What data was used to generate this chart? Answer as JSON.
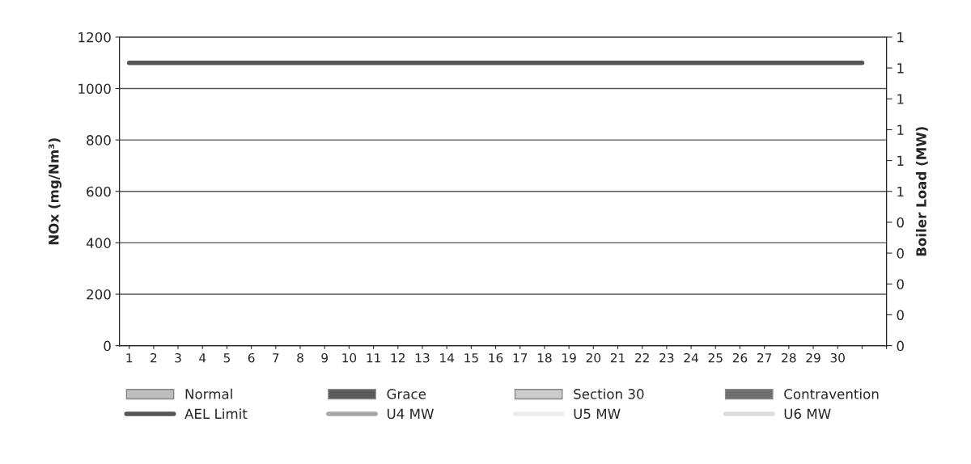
{
  "chart_data": {
    "type": "line",
    "ylabel": "NOx (mg/Nm³)",
    "y2label": "Boiler Load (MW)",
    "categories": [
      "1",
      "2",
      "3",
      "4",
      "5",
      "6",
      "7",
      "8",
      "9",
      "10",
      "11",
      "12",
      "13",
      "14",
      "15",
      "16",
      "17",
      "18",
      "19",
      "20",
      "21",
      "22",
      "23",
      "24",
      "25",
      "26",
      "27",
      "28",
      "29",
      "30",
      null,
      null
    ],
    "series": [
      {
        "name": "Normal",
        "type": "bar",
        "color": "#bdbdbd",
        "values": [
          null,
          null,
          null,
          null,
          null,
          null,
          null,
          null,
          null,
          null,
          null,
          null,
          null,
          null,
          null,
          null,
          null,
          null,
          null,
          null,
          null,
          null,
          null,
          null,
          null,
          null,
          null,
          null,
          null,
          null,
          null,
          null
        ]
      },
      {
        "name": "Grace",
        "type": "bar",
        "color": "#5a5a5a",
        "values": [
          null,
          null,
          null,
          null,
          null,
          null,
          null,
          null,
          null,
          null,
          null,
          null,
          null,
          null,
          null,
          null,
          null,
          null,
          null,
          null,
          null,
          null,
          null,
          null,
          null,
          null,
          null,
          null,
          null,
          null,
          null,
          null
        ]
      },
      {
        "name": "Section 30",
        "type": "bar",
        "color": "#cccccc",
        "values": [
          null,
          null,
          null,
          null,
          null,
          null,
          null,
          null,
          null,
          null,
          null,
          null,
          null,
          null,
          null,
          null,
          null,
          null,
          null,
          null,
          null,
          null,
          null,
          null,
          null,
          null,
          null,
          null,
          null,
          null,
          null,
          null
        ]
      },
      {
        "name": "Contravention",
        "type": "bar",
        "color": "#6e6e6e",
        "values": [
          null,
          null,
          null,
          null,
          null,
          null,
          null,
          null,
          null,
          null,
          null,
          null,
          null,
          null,
          null,
          null,
          null,
          null,
          null,
          null,
          null,
          null,
          null,
          null,
          null,
          null,
          null,
          null,
          null,
          null,
          null,
          null
        ]
      },
      {
        "name": "AEL Limit",
        "color": "#555555",
        "values": [
          1100,
          1100,
          1100,
          1100,
          1100,
          1100,
          1100,
          1100,
          1100,
          1100,
          1100,
          1100,
          1100,
          1100,
          1100,
          1100,
          1100,
          1100,
          1100,
          1100,
          1100,
          1100,
          1100,
          1100,
          1100,
          1100,
          1100,
          1100,
          1100,
          1100,
          1100,
          null
        ]
      },
      {
        "name": "U4 MW",
        "type": "line",
        "color": "#a8a8a8",
        "values": [
          null,
          null,
          null,
          null,
          null,
          null,
          null,
          null,
          null,
          null,
          null,
          null,
          null,
          null,
          null,
          null,
          null,
          null,
          null,
          null,
          null,
          null,
          null,
          null,
          null,
          null,
          null,
          null,
          null,
          null,
          null,
          null
        ]
      },
      {
        "name": "U5 MW",
        "type": "line",
        "color": "#eeeeee",
        "values": [
          null,
          null,
          null,
          null,
          null,
          null,
          null,
          null,
          null,
          null,
          null,
          null,
          null,
          null,
          null,
          null,
          null,
          null,
          null,
          null,
          null,
          null,
          null,
          null,
          null,
          null,
          null,
          null,
          null,
          null,
          null,
          null
        ]
      },
      {
        "name": "U6 MW",
        "type": "line",
        "color": "#dddddd",
        "values": [
          null,
          null,
          null,
          null,
          null,
          null,
          null,
          null,
          null,
          null,
          null,
          null,
          null,
          null,
          null,
          null,
          null,
          null,
          null,
          null,
          null,
          null,
          null,
          null,
          null,
          null,
          null,
          null,
          null,
          null,
          null,
          null
        ]
      }
    ],
    "ylim": [
      0,
      1200
    ],
    "yticks": [
      0,
      200,
      400,
      600,
      800,
      1000,
      1200
    ],
    "y2lim": [
      0,
      1
    ],
    "y2ticks": [
      0,
      {
        "value": 0.1,
        "label": "0"
      },
      {
        "value": 0.2,
        "label": "0"
      },
      {
        "value": 0.3,
        "label": "0"
      },
      {
        "value": 0.4,
        "label": "0"
      },
      {
        "value": 0.5,
        "label": "1"
      },
      {
        "value": 0.6,
        "label": "1"
      },
      {
        "value": 0.7,
        "label": "1"
      },
      {
        "value": 0.8,
        "label": "1"
      },
      {
        "value": 0.9,
        "label": "1"
      },
      1
    ],
    "grid": "y",
    "legend": "bottom"
  }
}
